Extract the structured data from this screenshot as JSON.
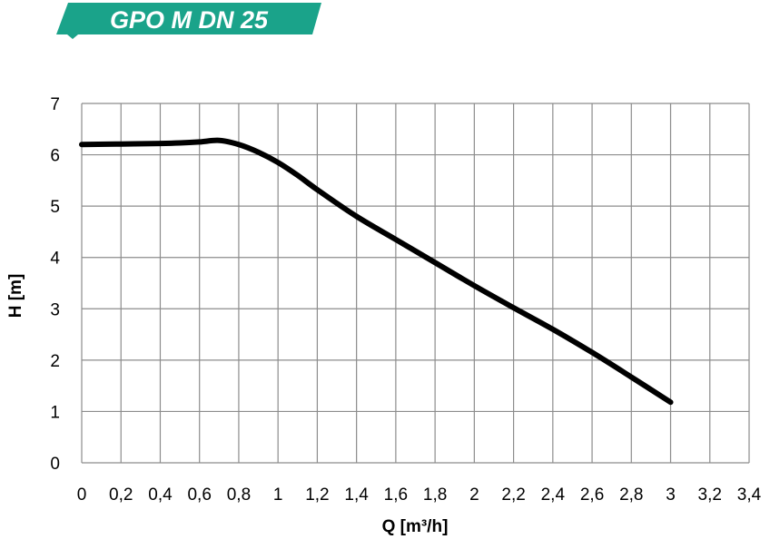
{
  "title": "GPO M DN 25",
  "colors": {
    "title_banner": "#1aa38a",
    "curve": "#000000",
    "grid": "#8c8c8c"
  },
  "chart_data": {
    "type": "line",
    "title": "GPO M DN 25",
    "xlabel": "Q [m³/h]",
    "ylabel": "H [m]",
    "xlim": [
      0,
      3.4
    ],
    "ylim": [
      0,
      7
    ],
    "grid": true,
    "x_ticks": [
      0,
      0.2,
      0.4,
      0.6,
      0.8,
      1,
      1.2,
      1.4,
      1.6,
      1.8,
      2,
      2.2,
      2.4,
      2.6,
      2.8,
      3,
      3.2,
      3.4
    ],
    "x_tick_labels": [
      "0",
      "0,2",
      "0,4",
      "0,6",
      "0,8",
      "1",
      "1,2",
      "1,4",
      "1,6",
      "1,8",
      "2",
      "2,2",
      "2,4",
      "2,6",
      "2,8",
      "3",
      "3,2",
      "3,4"
    ],
    "y_ticks": [
      0,
      1,
      2,
      3,
      4,
      5,
      6,
      7
    ],
    "y_tick_labels": [
      "0",
      "1",
      "2",
      "3",
      "4",
      "5",
      "6",
      "7"
    ],
    "series": [
      {
        "x": [
          0,
          0.2,
          0.4,
          0.5,
          0.6,
          0.7,
          0.8,
          0.9,
          1.0,
          1.1,
          1.2,
          1.4,
          1.6,
          1.8,
          2.0,
          2.2,
          2.4,
          2.6,
          2.8,
          3.0
        ],
        "y": [
          6.2,
          6.21,
          6.22,
          6.23,
          6.25,
          6.28,
          6.2,
          6.05,
          5.85,
          5.6,
          5.32,
          4.8,
          4.35,
          3.9,
          3.45,
          3.02,
          2.6,
          2.15,
          1.67,
          1.18
        ]
      }
    ]
  }
}
